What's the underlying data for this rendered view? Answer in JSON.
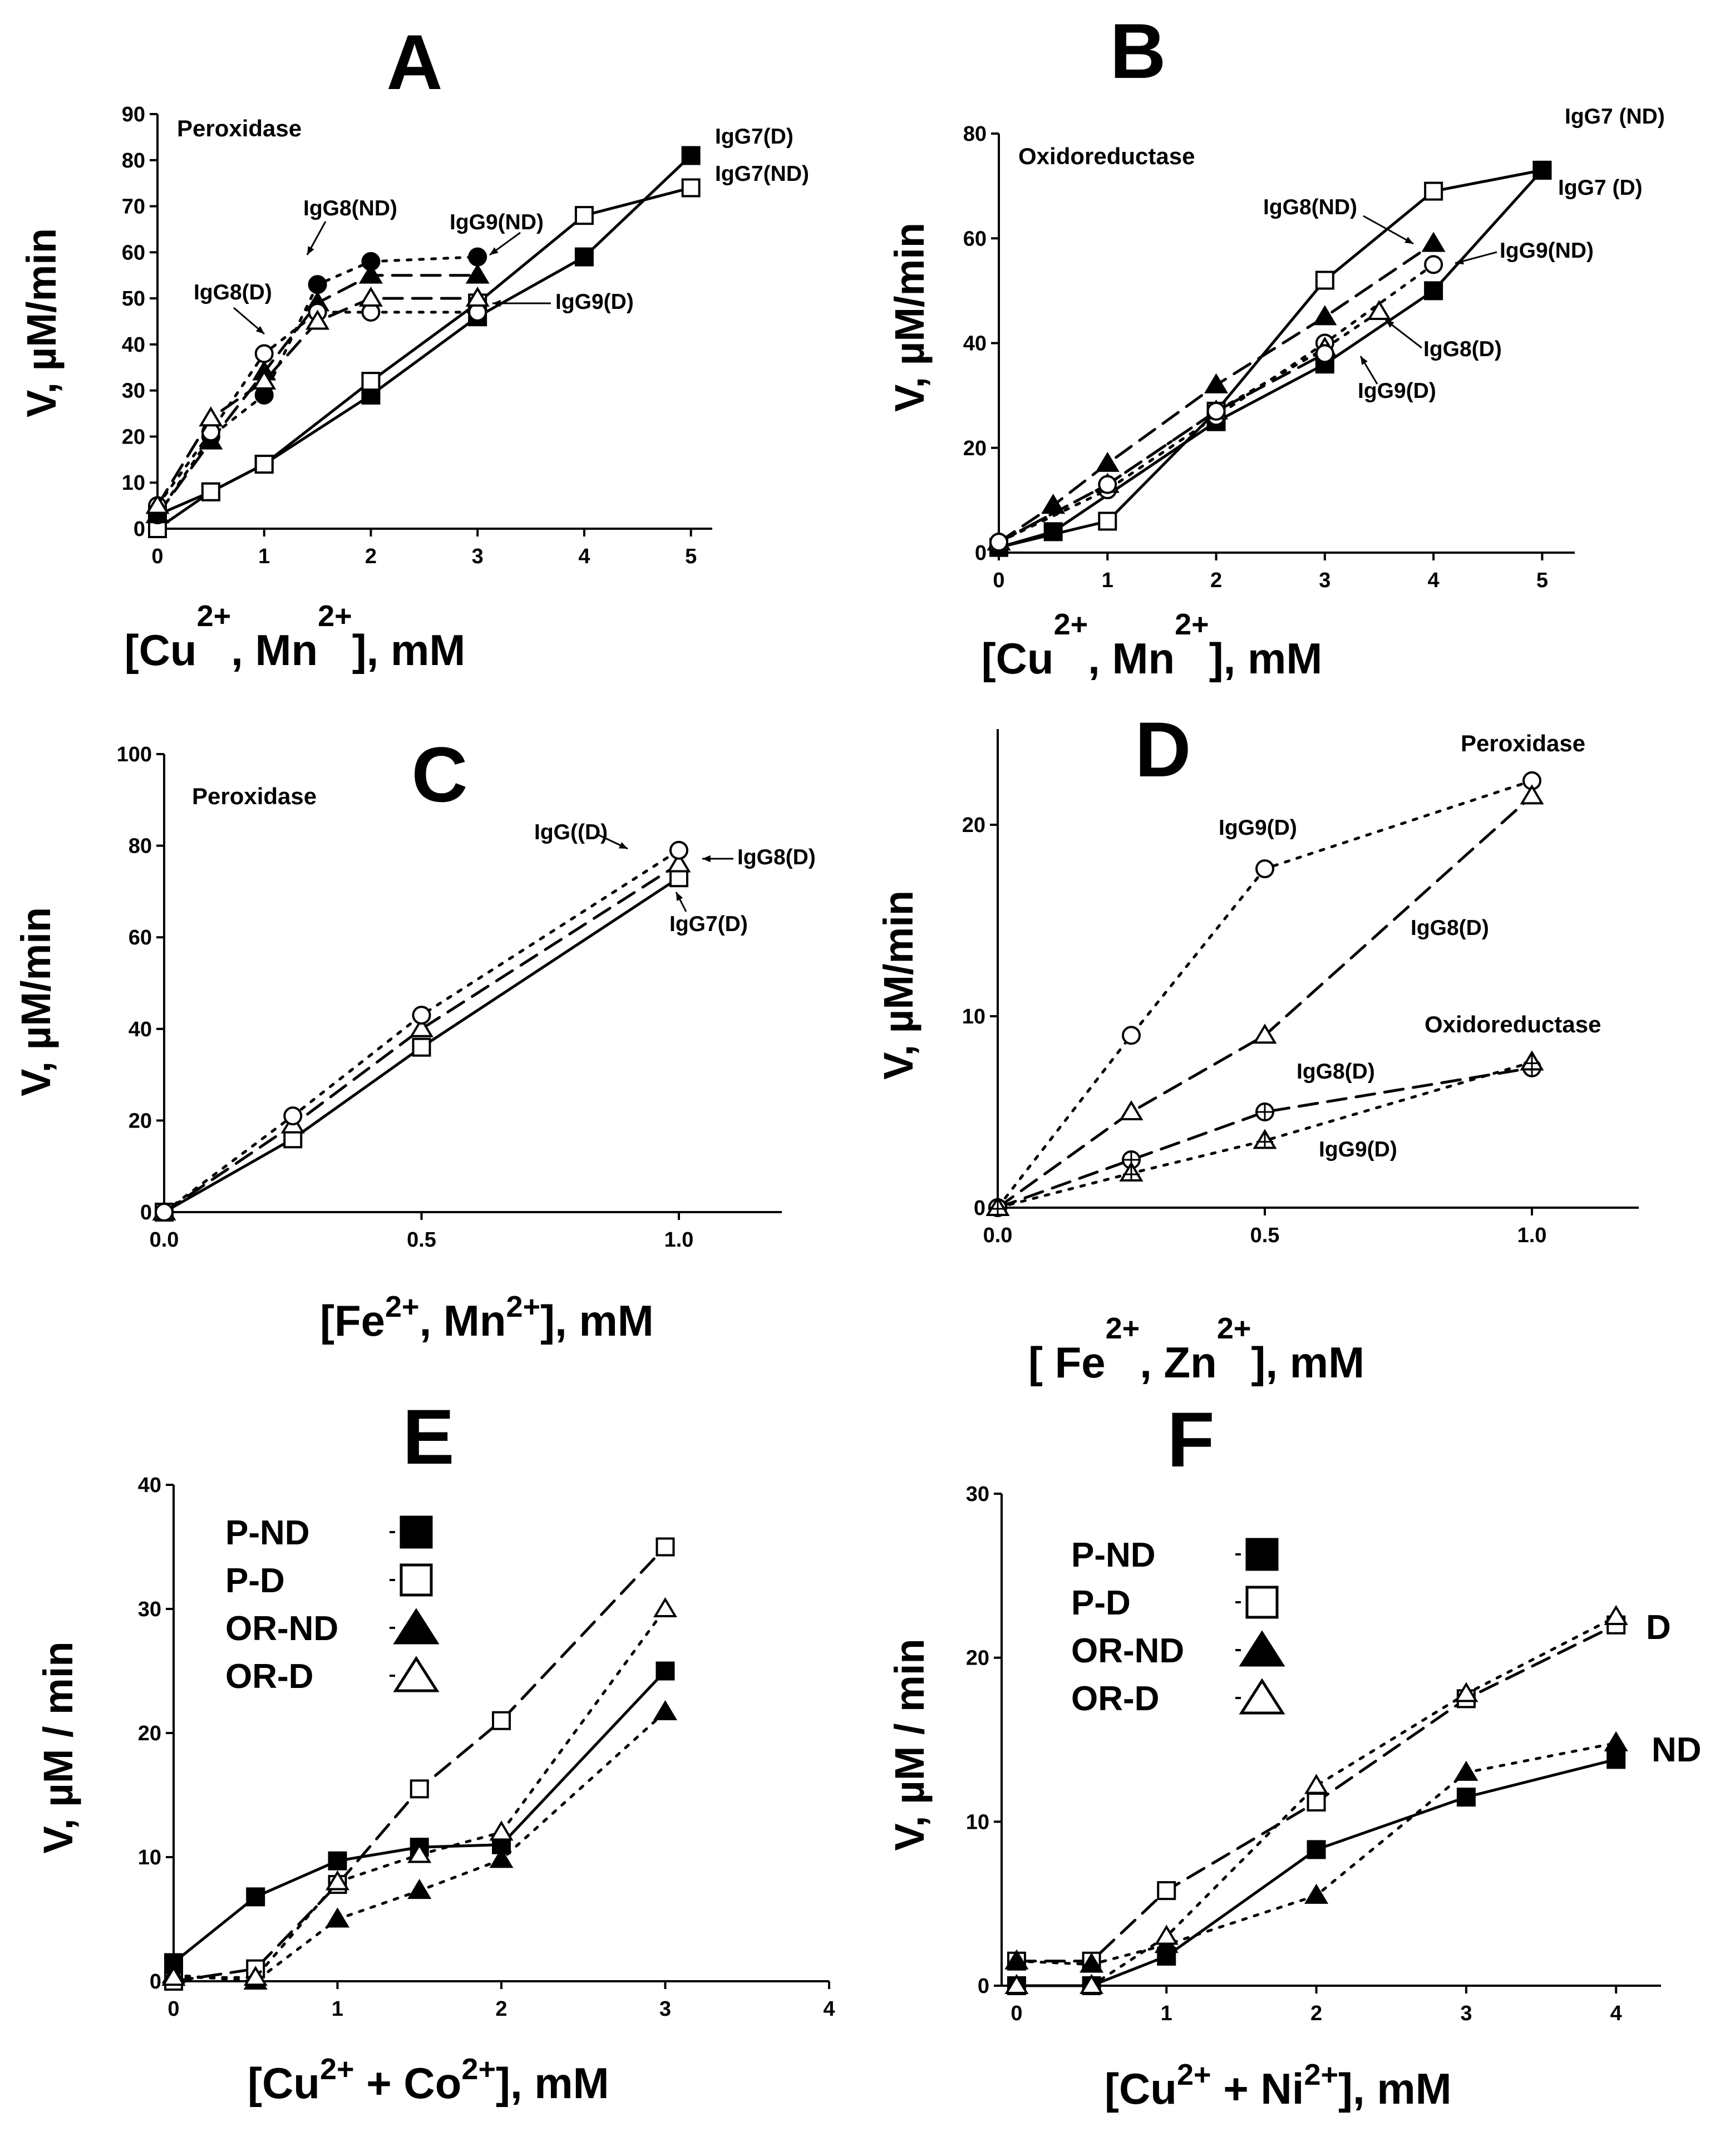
{
  "chart_data": [
    {
      "panel": "A",
      "type": "line",
      "title": "A",
      "note": "Peroxidase",
      "ylabel": "V, µM/min",
      "xlabel": {
        "a": "[Cu",
        "s1": "2+",
        "b": ", Mn",
        "s2": "2+",
        "c": "], mM"
      },
      "xlim": [
        0,
        5.2
      ],
      "ylim": [
        0,
        90
      ],
      "xticks": [
        0,
        1,
        2,
        3,
        4,
        5
      ],
      "yticks": [
        0,
        10,
        20,
        30,
        40,
        50,
        60,
        70,
        80,
        90
      ],
      "series": [
        {
          "name": "IgG7(D)",
          "marker": "square",
          "fill": true,
          "dash": "solid",
          "x": [
            0,
            0.5,
            1,
            2,
            3,
            4,
            5
          ],
          "y": [
            3,
            8,
            14,
            29,
            46,
            59,
            81
          ]
        },
        {
          "name": "IgG7(ND)",
          "marker": "square",
          "fill": false,
          "dash": "solid",
          "x": [
            0,
            0.5,
            1,
            2,
            3,
            4,
            5
          ],
          "y": [
            0,
            8,
            14,
            32,
            49,
            68,
            74
          ]
        },
        {
          "name": "IgG8(ND)",
          "marker": "triangle",
          "fill": true,
          "dash": "dash",
          "x": [
            0,
            0.5,
            1,
            1.5,
            2,
            3
          ],
          "y": [
            3,
            19,
            34,
            49,
            55,
            55
          ]
        },
        {
          "name": "IgG9(ND)",
          "marker": "circle",
          "fill": true,
          "dash": "dot",
          "x": [
            0,
            0.5,
            1,
            1.5,
            2,
            3
          ],
          "y": [
            3,
            20,
            29,
            53,
            58,
            59
          ]
        },
        {
          "name": "IgG8(D)",
          "marker": "circle",
          "fill": false,
          "dash": "dot",
          "x": [
            0,
            0.5,
            1,
            1.5,
            2,
            3
          ],
          "y": [
            5,
            21,
            38,
            47,
            47,
            47
          ]
        },
        {
          "name": "IgG9(D)",
          "marker": "triangle",
          "fill": false,
          "dash": "dash",
          "x": [
            0,
            0.5,
            1,
            1.5,
            2,
            3
          ],
          "y": [
            5,
            24,
            32,
            45,
            50,
            50
          ]
        }
      ],
      "labels": [
        {
          "text": "IgG7(D)"
        },
        {
          "text": "IgG7(ND)"
        },
        {
          "text": "IgG8(ND)"
        },
        {
          "text": "IgG9(ND)"
        },
        {
          "text": "IgG8(D)"
        },
        {
          "text": "IgG9(D)"
        }
      ]
    },
    {
      "panel": "B",
      "type": "line",
      "title": "B",
      "note": "Oxidoreductase",
      "ylabel": "V, µM/min",
      "xlabel": {
        "a": "[Cu",
        "s1": "2+",
        "b": ",  Mn",
        "s2": "2+",
        "c": "], mM"
      },
      "xlim": [
        0,
        5.3
      ],
      "ylim": [
        0,
        80
      ],
      "xticks": [
        0,
        1,
        2,
        3,
        4,
        5
      ],
      "yticks": [
        0,
        20,
        40,
        60,
        80
      ],
      "series": [
        {
          "name": "IgG7 (ND)",
          "marker": "square",
          "fill": false,
          "dash": "solid",
          "x": [
            0,
            1,
            2,
            3,
            4,
            5
          ],
          "y": [
            1,
            6,
            27,
            52,
            69,
            73
          ]
        },
        {
          "name": "IgG7 (D)",
          "marker": "square",
          "fill": true,
          "dash": "solid",
          "x": [
            0,
            0.5,
            2,
            3,
            4,
            5
          ],
          "y": [
            1,
            4,
            25,
            36,
            50,
            73
          ]
        },
        {
          "name": "IgG8(ND)",
          "marker": "triangle",
          "fill": true,
          "dash": "dash",
          "x": [
            0,
            0.5,
            1,
            2,
            3,
            4
          ],
          "y": [
            2,
            9,
            17,
            32,
            45,
            59
          ]
        },
        {
          "name": "IgG9(ND)",
          "marker": "circle",
          "fill": false,
          "dash": "dot",
          "x": [
            0,
            1,
            2,
            3,
            4
          ],
          "y": [
            2,
            12,
            26,
            40,
            55
          ]
        },
        {
          "name": "IgG8(D)",
          "marker": "triangle",
          "fill": false,
          "dash": "dot",
          "x": [
            0,
            1,
            2,
            3,
            3.5
          ],
          "y": [
            2,
            13,
            27,
            39,
            46
          ]
        },
        {
          "name": "IgG9(D)",
          "marker": "circle",
          "fill": false,
          "dash": "dash",
          "x": [
            0,
            1,
            2,
            3
          ],
          "y": [
            2,
            13,
            27,
            38
          ]
        }
      ],
      "labels": [
        {
          "text": "IgG7 (ND)"
        },
        {
          "text": "IgG7 (D)"
        },
        {
          "text": "IgG8(ND)"
        },
        {
          "text": "IgG9(ND)"
        },
        {
          "text": "IgG8(D)"
        },
        {
          "text": "IgG9(D)"
        }
      ]
    },
    {
      "panel": "C",
      "type": "line",
      "title": "C",
      "note": "Peroxidase",
      "ylabel": "V, µM/min",
      "xlabel": {
        "a": "[Fe",
        "s1": "2+",
        "b": ", Mn",
        "s2": "2+",
        "c": "], mM"
      },
      "xlim": [
        0,
        1.2
      ],
      "ylim": [
        0,
        100
      ],
      "xticks": [
        0,
        0.5,
        1
      ],
      "xtickLabels": [
        "0.0",
        "0.5",
        "1.0"
      ],
      "yticks": [
        0,
        20,
        40,
        60,
        80,
        100
      ],
      "series": [
        {
          "name": "IgG7(D)",
          "marker": "square",
          "fill": false,
          "dash": "solid",
          "x": [
            0,
            0.25,
            0.5,
            1
          ],
          "y": [
            0,
            16,
            36,
            73
          ]
        },
        {
          "name": "IgG8(D)",
          "marker": "triangle",
          "fill": false,
          "dash": "dash",
          "x": [
            0,
            0.25,
            0.5,
            1
          ],
          "y": [
            0,
            19,
            40,
            76
          ]
        },
        {
          "name": "IgG((D)",
          "marker": "circle",
          "fill": false,
          "dash": "dot",
          "x": [
            0,
            0.25,
            0.5,
            1
          ],
          "y": [
            0,
            21,
            43,
            79
          ]
        }
      ],
      "labels": [
        {
          "text": "IgG((D)"
        },
        {
          "text": "IgG8(D)"
        },
        {
          "text": "IgG7(D)"
        }
      ]
    },
    {
      "panel": "D",
      "type": "line",
      "title": "D",
      "notes": [
        "Peroxidase",
        "Oxidoreductase"
      ],
      "ylabel": "V, µM/min",
      "xlabel": {
        "a": "[ Fe",
        "s1": "2+",
        "b": ", Zn",
        "s2": "2+",
        "c": "], mM"
      },
      "xlim": [
        0,
        1.2
      ],
      "ylim": [
        0,
        25
      ],
      "xticks": [
        0,
        0.5,
        1
      ],
      "xtickLabels": [
        "0.0",
        "0.5",
        "1.0"
      ],
      "yticks": [
        0,
        10,
        20
      ],
      "series": [
        {
          "name": "IgG9(D) peroxidase",
          "marker": "circle",
          "fill": false,
          "dash": "dot",
          "x": [
            0,
            0.25,
            0.5,
            1
          ],
          "y": [
            0,
            9,
            17.7,
            22.3
          ]
        },
        {
          "name": "IgG8(D) peroxidase",
          "marker": "triangle",
          "fill": false,
          "dash": "dash",
          "x": [
            0,
            0.25,
            0.5,
            1
          ],
          "y": [
            0,
            5,
            9,
            21.5
          ]
        },
        {
          "name": "IgG8(D) oxidoreductase",
          "marker": "circleplus",
          "fill": false,
          "dash": "dash",
          "x": [
            0,
            0.25,
            0.5,
            1
          ],
          "y": [
            0,
            2.5,
            5,
            7.3
          ]
        },
        {
          "name": "IgG9(D) oxidoreductase",
          "marker": "triangleplus",
          "fill": false,
          "dash": "dot",
          "x": [
            0,
            0.25,
            0.5,
            1
          ],
          "y": [
            0,
            1.8,
            3.5,
            7.6
          ]
        }
      ],
      "labels": [
        {
          "text": "IgG9(D)"
        },
        {
          "text": "IgG8(D)"
        },
        {
          "text": "IgG8(D)"
        },
        {
          "text": "IgG9(D)"
        }
      ]
    },
    {
      "panel": "E",
      "type": "line",
      "title": "E",
      "ylabel": "V, µM / min",
      "xlabel": {
        "a": "[Cu",
        "s1": "2+",
        "b": " + Co",
        "s2": "2+",
        "c": "], mM"
      },
      "xlim": [
        0,
        4
      ],
      "ylim": [
        0,
        40
      ],
      "xticks": [
        0,
        1,
        2,
        3,
        4
      ],
      "yticks": [
        0,
        10,
        20,
        30,
        40
      ],
      "legend": [
        "P-ND",
        "P-D",
        "OR-ND",
        "OR-D"
      ],
      "series": [
        {
          "name": "P-ND",
          "marker": "square",
          "fill": true,
          "dash": "solid",
          "x": [
            0,
            0.5,
            1,
            1.5,
            2,
            3
          ],
          "y": [
            1.5,
            6.8,
            9.7,
            10.8,
            11,
            25
          ]
        },
        {
          "name": "P-D",
          "marker": "square",
          "fill": false,
          "dash": "dash",
          "x": [
            0,
            0.5,
            1,
            1.5,
            2,
            3
          ],
          "y": [
            0,
            1,
            7.8,
            15.5,
            21,
            35
          ]
        },
        {
          "name": "OR-ND",
          "marker": "triangle",
          "fill": true,
          "dash": "dot",
          "x": [
            0,
            0.5,
            1,
            1.5,
            2,
            3
          ],
          "y": [
            0.5,
            0,
            5,
            7.3,
            9.8,
            21.7
          ]
        },
        {
          "name": "OR-D",
          "marker": "triangle",
          "fill": false,
          "dash": "dot",
          "x": [
            0,
            0.5,
            1,
            1.5,
            2,
            3
          ],
          "y": [
            0.3,
            0.3,
            8,
            10.2,
            12,
            30
          ]
        }
      ]
    },
    {
      "panel": "F",
      "type": "line",
      "title": "F",
      "ylabel": "V, µM / min",
      "xlabel": {
        "a": "[Cu",
        "s1": "2+",
        "b": " + Ni",
        "s2": "2+",
        "c": "], mM"
      },
      "xlim": [
        -0.1,
        4.3
      ],
      "ylim": [
        0,
        30
      ],
      "xticks": [
        0,
        1,
        2,
        3,
        4
      ],
      "yticks": [
        0,
        10,
        20,
        30
      ],
      "legend": [
        "P-ND",
        "P-D",
        "OR-ND",
        "OR-D"
      ],
      "annotations": [
        "D",
        "ND"
      ],
      "series": [
        {
          "name": "P-ND",
          "marker": "square",
          "fill": true,
          "dash": "solid",
          "x": [
            0,
            0.5,
            1,
            2,
            3,
            4
          ],
          "y": [
            0,
            0,
            1.8,
            8.3,
            11.5,
            13.8
          ]
        },
        {
          "name": "P-D",
          "marker": "square",
          "fill": false,
          "dash": "dash",
          "x": [
            0,
            0.5,
            1,
            2,
            3,
            4
          ],
          "y": [
            1.5,
            1.5,
            5.8,
            11.2,
            17.5,
            22
          ]
        },
        {
          "name": "OR-ND",
          "marker": "triangle",
          "fill": true,
          "dash": "dot",
          "x": [
            0,
            0.5,
            1,
            2,
            3,
            4
          ],
          "y": [
            1.5,
            1.3,
            2.5,
            5.5,
            13,
            14.8
          ]
        },
        {
          "name": "OR-D",
          "marker": "triangle",
          "fill": false,
          "dash": "dot",
          "x": [
            0,
            0.5,
            1,
            2,
            3,
            4
          ],
          "y": [
            0,
            0,
            3,
            12.2,
            17.8,
            22.5
          ]
        }
      ]
    }
  ]
}
